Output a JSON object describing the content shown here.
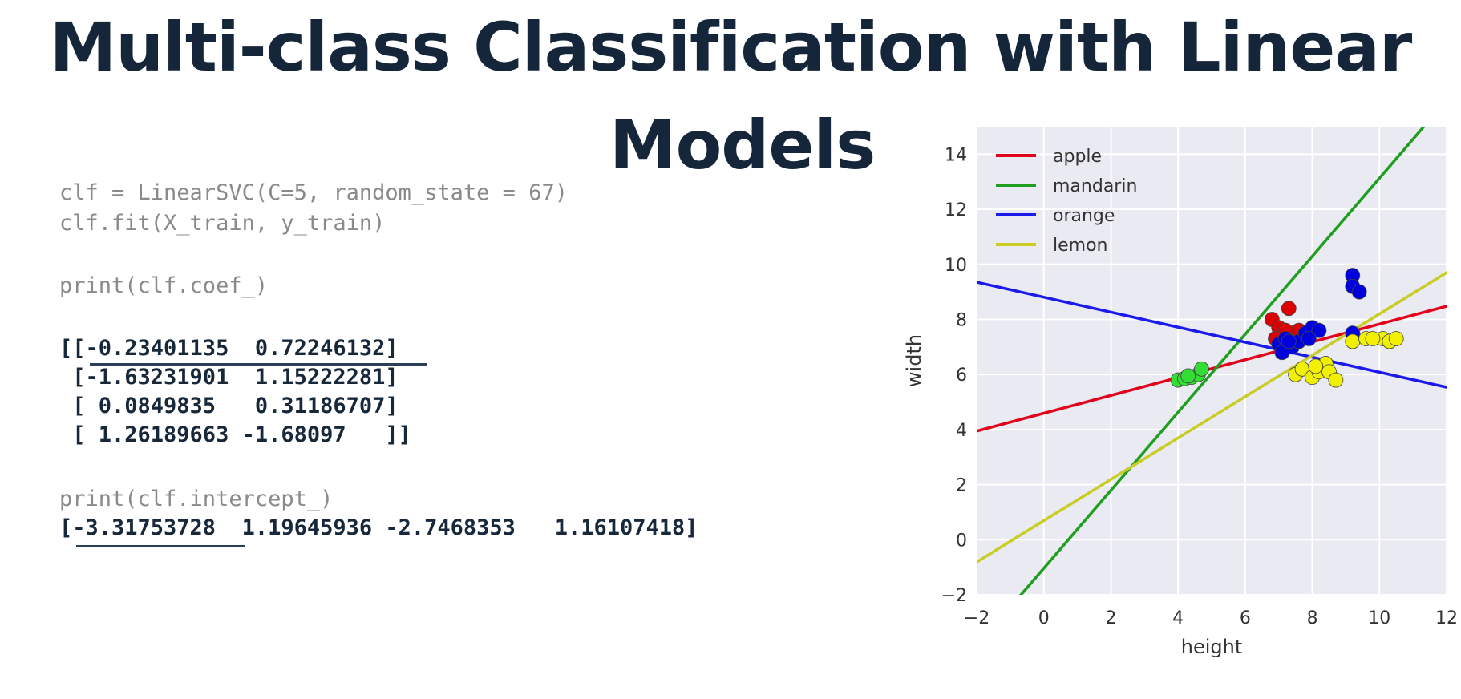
{
  "title": {
    "line1": "Multi-class Classification with Linear",
    "line2": "Models"
  },
  "code": {
    "line1": "clf = LinearSVC(C=5, random_state = 67)",
    "line2": "clf.fit(X_train, y_train)",
    "line3": "print(clf.coef_)",
    "coef_row1": "[[-0.23401135  0.72246132]",
    "coef_row2": " [-1.63231901  1.15222281]",
    "coef_row3": " [ 0.0849835   0.31186707]",
    "coef_row4": " [ 1.26189663 -1.68097   ]]",
    "line4": "print(clf.intercept_)",
    "intercept_row": "[-3.31753728  1.19645936 -2.7468353   1.16107418]"
  },
  "chart_data": {
    "type": "scatter",
    "xlabel": "height",
    "ylabel": "width",
    "xlim": [
      -2,
      12
    ],
    "ylim": [
      -2,
      15
    ],
    "xticks": [
      "−2",
      "0",
      "2",
      "4",
      "6",
      "8",
      "10",
      "12"
    ],
    "yticks": [
      "−2",
      "0",
      "2",
      "4",
      "6",
      "8",
      "10",
      "12",
      "14"
    ],
    "xtick_values": [
      -2,
      0,
      2,
      4,
      6,
      8,
      10,
      12
    ],
    "ytick_values": [
      -2,
      0,
      2,
      4,
      6,
      8,
      10,
      12,
      14
    ],
    "grid": true,
    "legend_position": "top-left",
    "background": "#eaeaf2",
    "lines": [
      {
        "name": "apple",
        "color": "#e3001a",
        "coef": [
          -0.23401135,
          0.72246132
        ],
        "intercept": -3.31753728
      },
      {
        "name": "mandarin",
        "color": "#1f9e1f",
        "coef": [
          -1.63231901,
          1.15222281
        ],
        "intercept": 1.19645936
      },
      {
        "name": "orange",
        "color": "#1a1aee",
        "coef": [
          0.0849835,
          0.31186707
        ],
        "intercept": -2.7468353
      },
      {
        "name": "lemon",
        "color": "#c9cc22",
        "coef": [
          1.26189663,
          -1.68097
        ],
        "intercept": 1.16107418
      }
    ],
    "points": [
      {
        "class": "mandarin",
        "color": "#33dd33",
        "xy": [
          [
            4.0,
            5.8
          ],
          [
            4.2,
            5.85
          ],
          [
            4.4,
            5.9
          ],
          [
            4.6,
            6.0
          ],
          [
            4.7,
            6.2
          ],
          [
            4.3,
            5.95
          ]
        ]
      },
      {
        "class": "apple",
        "color": "#dd0000",
        "xy": [
          [
            6.8,
            8.0
          ],
          [
            7.3,
            8.4
          ],
          [
            7.0,
            7.7
          ],
          [
            7.4,
            7.5
          ],
          [
            7.1,
            7.4
          ],
          [
            7.2,
            7.6
          ],
          [
            7.6,
            7.6
          ],
          [
            6.9,
            7.3
          ]
        ]
      },
      {
        "class": "orange",
        "color": "#0000dd",
        "xy": [
          [
            7.0,
            7.1
          ],
          [
            7.2,
            7.3
          ],
          [
            7.4,
            7.0
          ],
          [
            7.1,
            6.8
          ],
          [
            7.6,
            7.2
          ],
          [
            7.8,
            7.5
          ],
          [
            8.0,
            7.7
          ],
          [
            8.2,
            7.6
          ],
          [
            7.9,
            7.3
          ],
          [
            7.3,
            7.2
          ],
          [
            9.2,
            9.6
          ],
          [
            9.2,
            9.2
          ],
          [
            9.4,
            9.0
          ],
          [
            9.2,
            7.5
          ]
        ]
      },
      {
        "class": "lemon",
        "color": "#f0f000",
        "xy": [
          [
            7.5,
            6.0
          ],
          [
            7.7,
            6.2
          ],
          [
            8.0,
            5.9
          ],
          [
            8.2,
            6.1
          ],
          [
            8.4,
            6.4
          ],
          [
            8.5,
            6.1
          ],
          [
            8.7,
            5.8
          ],
          [
            8.1,
            6.3
          ],
          [
            9.2,
            7.2
          ],
          [
            9.6,
            7.3
          ],
          [
            10.1,
            7.3
          ],
          [
            10.3,
            7.2
          ],
          [
            10.5,
            7.3
          ],
          [
            9.8,
            7.3
          ]
        ]
      }
    ]
  }
}
